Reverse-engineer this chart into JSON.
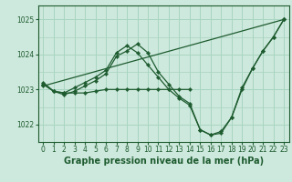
{
  "bg_color": "#cde8dc",
  "grid_color": "#a8d5c2",
  "line_color": "#1e5c30",
  "xlabel": "Graphe pression niveau de la mer (hPa)",
  "xlabel_fontsize": 7.0,
  "ylim": [
    1021.5,
    1025.4
  ],
  "xlim": [
    -0.5,
    23.5
  ],
  "yticks": [
    1022,
    1023,
    1024,
    1025
  ],
  "xticks": [
    0,
    1,
    2,
    3,
    4,
    5,
    6,
    7,
    8,
    9,
    10,
    11,
    12,
    13,
    14,
    15,
    16,
    17,
    18,
    19,
    20,
    21,
    22,
    23
  ],
  "series": [
    {
      "x": [
        0,
        1,
        2,
        3,
        4,
        5,
        6,
        7,
        8,
        9,
        10,
        11,
        12,
        13,
        14
      ],
      "y": [
        1023.15,
        1022.95,
        1022.9,
        1022.9,
        1022.9,
        1022.95,
        1023.0,
        1023.0,
        1023.0,
        1023.0,
        1023.0,
        1023.0,
        1023.0,
        1023.0,
        1023.0
      ]
    },
    {
      "x": [
        0,
        23
      ],
      "y": [
        1023.1,
        1025.0
      ]
    },
    {
      "x": [
        0,
        1,
        2,
        3,
        4,
        5,
        6,
        7,
        8,
        9,
        10,
        11,
        12,
        13,
        14,
        15,
        16,
        17,
        18,
        19,
        20,
        21,
        22,
        23
      ],
      "y": [
        1023.15,
        1022.95,
        1022.9,
        1023.05,
        1023.2,
        1023.35,
        1023.55,
        1024.05,
        1024.25,
        1024.05,
        1023.7,
        1023.35,
        1023.0,
        1022.75,
        1022.55,
        1021.85,
        1021.7,
        1021.75,
        1022.2,
        1023.0,
        1023.6,
        1024.1,
        1024.5,
        1025.0
      ]
    },
    {
      "x": [
        0,
        1,
        2,
        3,
        4,
        5,
        6,
        7,
        8,
        9,
        10,
        11,
        12,
        13,
        14,
        15,
        16,
        17,
        18,
        19,
        20,
        21,
        22,
        23
      ],
      "y": [
        1023.2,
        1022.95,
        1022.85,
        1022.95,
        1023.1,
        1023.25,
        1023.45,
        1023.95,
        1024.1,
        1024.3,
        1024.05,
        1023.5,
        1023.15,
        1022.8,
        1022.6,
        1021.85,
        1021.7,
        1021.8,
        1022.2,
        1023.05,
        1023.6,
        1024.1,
        1024.5,
        1025.0
      ]
    }
  ]
}
